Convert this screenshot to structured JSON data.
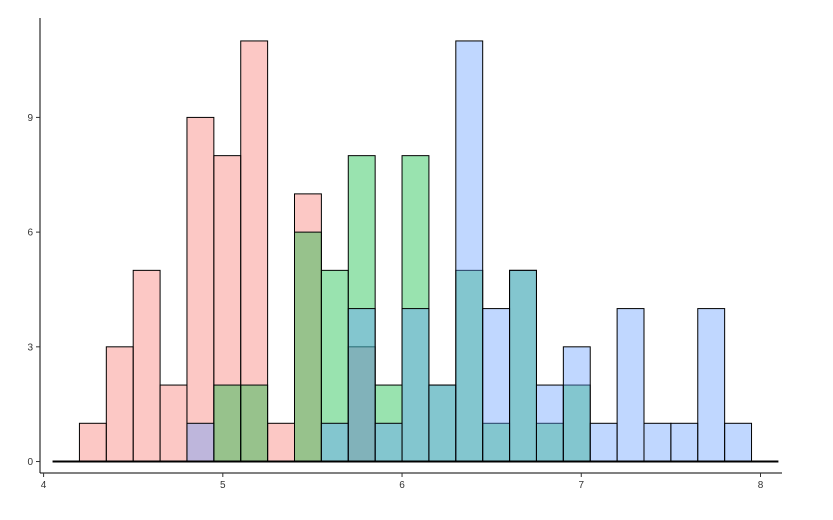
{
  "chart_data": {
    "type": "bar",
    "subtype": "overlapping-histogram",
    "title": "",
    "xlabel": "",
    "ylabel": "",
    "xlim": [
      3.98,
      8.12
    ],
    "ylim": [
      -0.3,
      11.6
    ],
    "grid": false,
    "legend": "none",
    "bin_width": 0.15,
    "x_ticks": [
      4,
      5,
      6,
      7,
      8
    ],
    "y_ticks": [
      0,
      3,
      6,
      9
    ],
    "baseline_range": [
      4.05,
      8.1
    ],
    "series": [
      {
        "color": "#F8766D",
        "bins": [
          {
            "x0": 4.2,
            "x1": 4.35,
            "count": 1
          },
          {
            "x0": 4.35,
            "x1": 4.5,
            "count": 3
          },
          {
            "x0": 4.5,
            "x1": 4.65,
            "count": 5
          },
          {
            "x0": 4.65,
            "x1": 4.8,
            "count": 2
          },
          {
            "x0": 4.8,
            "x1": 4.95,
            "count": 9
          },
          {
            "x0": 4.95,
            "x1": 5.1,
            "count": 8
          },
          {
            "x0": 5.1,
            "x1": 5.25,
            "count": 11
          },
          {
            "x0": 5.25,
            "x1": 5.4,
            "count": 1
          },
          {
            "x0": 5.4,
            "x1": 5.55,
            "count": 7
          },
          {
            "x0": 5.7,
            "x1": 5.85,
            "count": 3
          }
        ]
      },
      {
        "color": "#00BA38",
        "bins": [
          {
            "x0": 4.95,
            "x1": 5.1,
            "count": 2
          },
          {
            "x0": 5.1,
            "x1": 5.25,
            "count": 2
          },
          {
            "x0": 5.4,
            "x1": 5.55,
            "count": 6
          },
          {
            "x0": 5.55,
            "x1": 5.7,
            "count": 5
          },
          {
            "x0": 5.7,
            "x1": 5.85,
            "count": 8
          },
          {
            "x0": 5.85,
            "x1": 6.0,
            "count": 2
          },
          {
            "x0": 6.0,
            "x1": 6.15,
            "count": 8
          },
          {
            "x0": 6.15,
            "x1": 6.3,
            "count": 2
          },
          {
            "x0": 6.3,
            "x1": 6.45,
            "count": 5
          },
          {
            "x0": 6.45,
            "x1": 6.6,
            "count": 1
          },
          {
            "x0": 6.6,
            "x1": 6.75,
            "count": 5
          },
          {
            "x0": 6.75,
            "x1": 6.9,
            "count": 1
          },
          {
            "x0": 6.9,
            "x1": 7.05,
            "count": 2
          }
        ]
      },
      {
        "color": "#619CFF",
        "bins": [
          {
            "x0": 4.8,
            "x1": 4.95,
            "count": 1
          },
          {
            "x0": 5.55,
            "x1": 5.7,
            "count": 1
          },
          {
            "x0": 5.7,
            "x1": 5.85,
            "count": 4
          },
          {
            "x0": 5.85,
            "x1": 6.0,
            "count": 1
          },
          {
            "x0": 6.0,
            "x1": 6.15,
            "count": 4
          },
          {
            "x0": 6.15,
            "x1": 6.3,
            "count": 2
          },
          {
            "x0": 6.3,
            "x1": 6.45,
            "count": 11
          },
          {
            "x0": 6.45,
            "x1": 6.6,
            "count": 4
          },
          {
            "x0": 6.6,
            "x1": 6.75,
            "count": 5
          },
          {
            "x0": 6.75,
            "x1": 6.9,
            "count": 2
          },
          {
            "x0": 6.9,
            "x1": 7.05,
            "count": 3
          },
          {
            "x0": 7.05,
            "x1": 7.2,
            "count": 1
          },
          {
            "x0": 7.2,
            "x1": 7.35,
            "count": 4
          },
          {
            "x0": 7.35,
            "x1": 7.5,
            "count": 1
          },
          {
            "x0": 7.5,
            "x1": 7.65,
            "count": 1
          },
          {
            "x0": 7.65,
            "x1": 7.8,
            "count": 4
          },
          {
            "x0": 7.8,
            "x1": 7.95,
            "count": 1
          }
        ]
      }
    ],
    "bar_opacity": 0.4,
    "bar_outline": "#000000"
  }
}
